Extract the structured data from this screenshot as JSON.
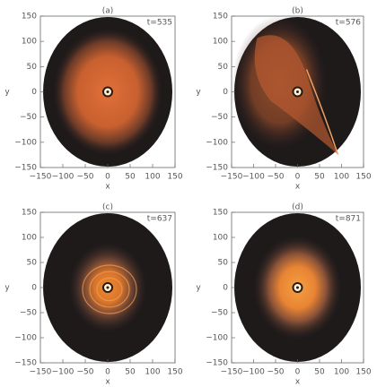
{
  "chart_data": [
    {
      "type": "image",
      "title": "(a)",
      "annotation": "t=535",
      "xlabel": "x",
      "ylabel": "y",
      "xlim": [
        -150,
        150
      ],
      "ylim": [
        -150,
        150
      ],
      "xticks": [
        {
          "value": -150,
          "label": "−150"
        },
        {
          "value": -100,
          "label": "−100"
        },
        {
          "value": -50,
          "label": "−50"
        },
        0,
        50,
        100,
        150
      ],
      "yticks": [
        {
          "value": -150,
          "label": "−150"
        },
        {
          "value": -100,
          "label": "−100"
        },
        {
          "value": -50,
          "label": "−50"
        },
        0,
        50,
        100,
        150
      ]
    },
    {
      "type": "image",
      "title": "(b)",
      "annotation": "t=576",
      "xlabel": "x",
      "ylabel": "y",
      "xlim": [
        -150,
        150
      ],
      "ylim": [
        -150,
        150
      ],
      "xticks": [
        {
          "value": -150,
          "label": "−150"
        },
        {
          "value": -100,
          "label": "−100"
        },
        {
          "value": -50,
          "label": "−50"
        },
        0,
        50,
        100,
        150
      ],
      "yticks": [
        {
          "value": -150,
          "label": "−150"
        },
        {
          "value": -100,
          "label": "−100"
        },
        {
          "value": -50,
          "label": "−50"
        },
        0,
        50,
        100,
        150
      ]
    },
    {
      "type": "image",
      "title": "(c)",
      "annotation": "t=637",
      "xlabel": "x",
      "ylabel": "y",
      "xlim": [
        -150,
        150
      ],
      "ylim": [
        -150,
        150
      ],
      "xticks": [
        {
          "value": -150,
          "label": "−150"
        },
        {
          "value": -100,
          "label": "−100"
        },
        {
          "value": -50,
          "label": "−50"
        },
        0,
        50,
        100,
        150
      ],
      "yticks": [
        {
          "value": -150,
          "label": "−150"
        },
        {
          "value": -100,
          "label": "−100"
        },
        {
          "value": -50,
          "label": "−50"
        },
        0,
        50,
        100,
        150
      ]
    },
    {
      "type": "image",
      "title": "(d)",
      "annotation": "t=871",
      "xlabel": "x",
      "ylabel": "y",
      "xlim": [
        -150,
        150
      ],
      "ylim": [
        -150,
        150
      ],
      "xticks": [
        {
          "value": -150,
          "label": "−150"
        },
        {
          "value": -100,
          "label": "−100"
        },
        {
          "value": -50,
          "label": "−50"
        },
        0,
        50,
        100,
        150
      ],
      "yticks": [
        {
          "value": -150,
          "label": "−150"
        },
        {
          "value": -100,
          "label": "−100"
        },
        {
          "value": -50,
          "label": "−50"
        },
        0,
        50,
        100,
        150
      ]
    }
  ]
}
